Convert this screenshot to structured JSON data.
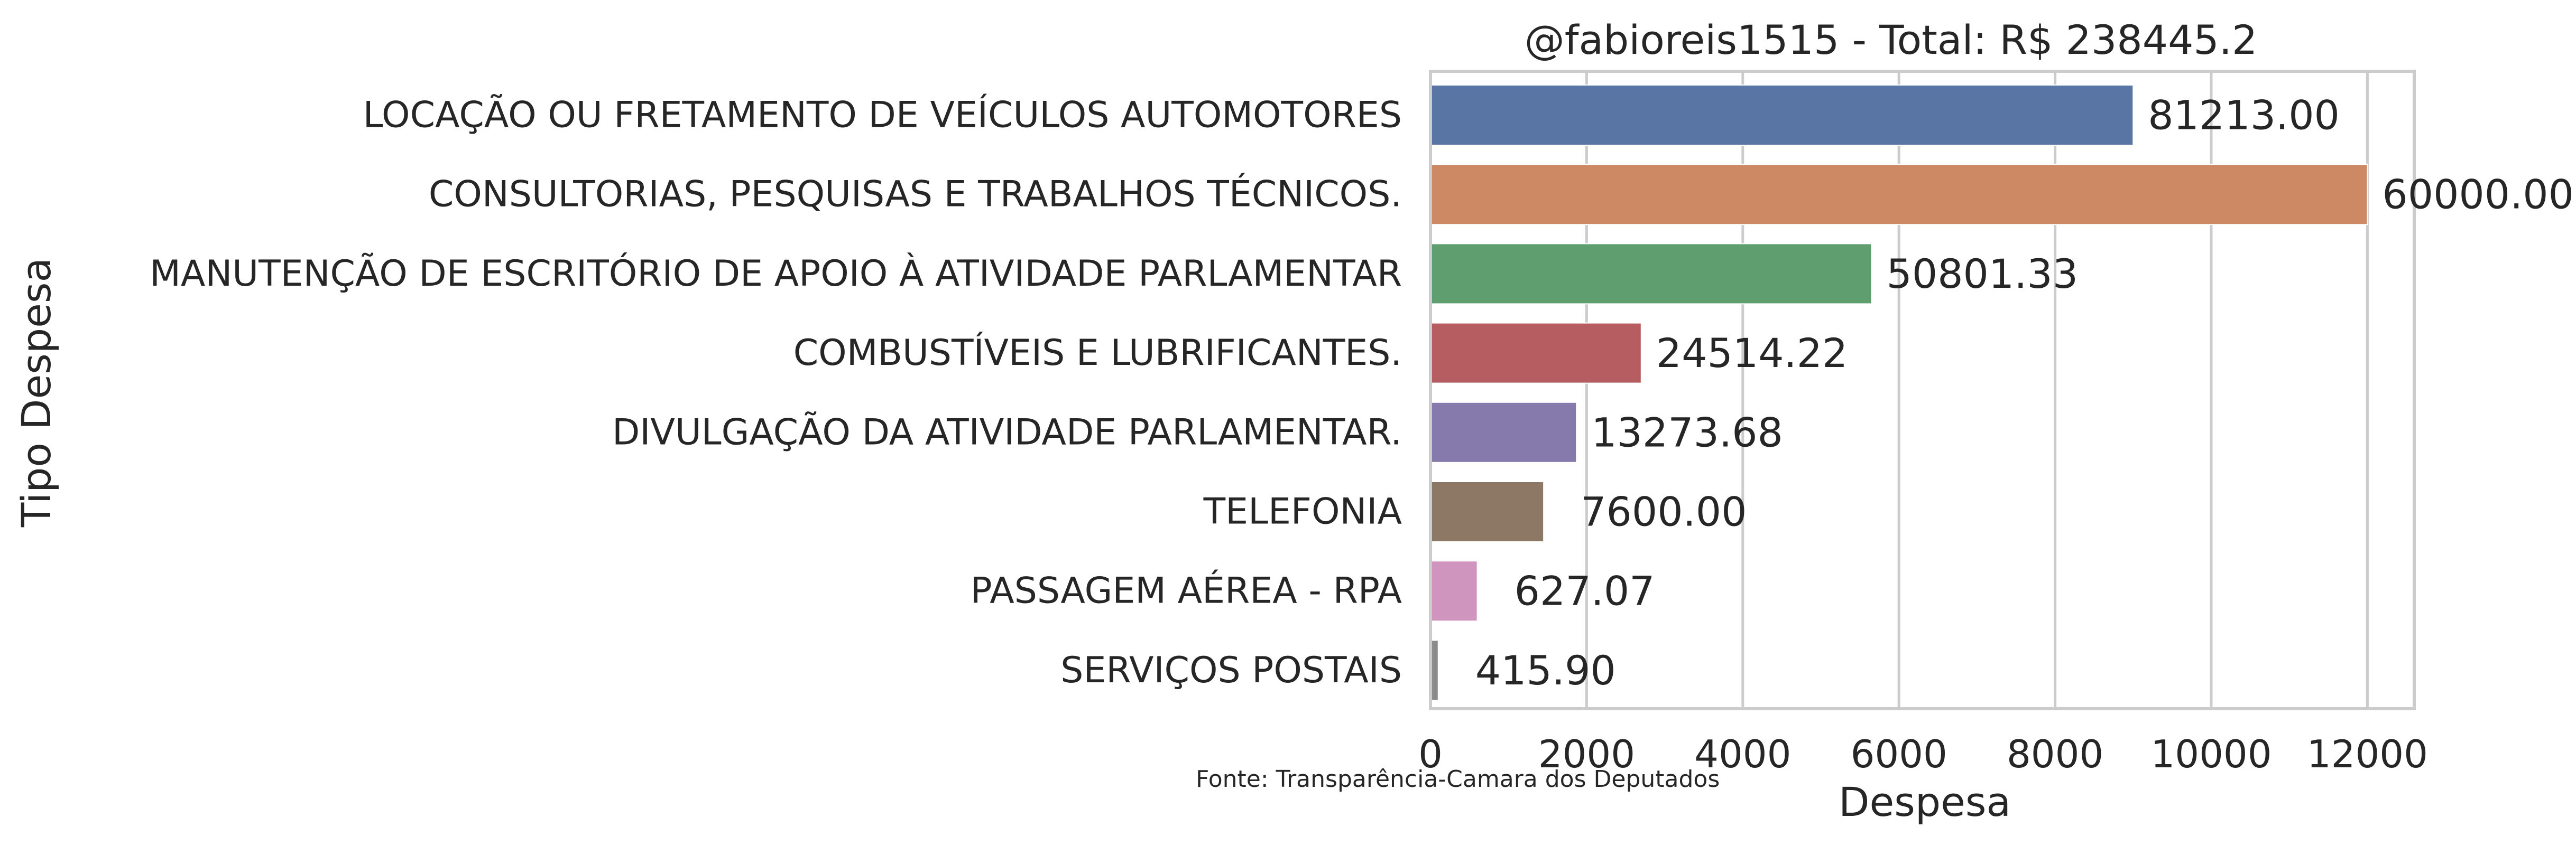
{
  "chart_data": {
    "type": "bar",
    "orientation": "horizontal",
    "title": "@fabioreis1515 - Total: R$ 238445.2",
    "xlabel": "Despesa",
    "ylabel": "Tipo Despesa",
    "xlim": [
      0,
      12600
    ],
    "xticks": [
      "0",
      "2000",
      "4000",
      "6000",
      "8000",
      "10000",
      "12000"
    ],
    "xtick_values": [
      0,
      2000,
      4000,
      6000,
      8000,
      10000,
      12000
    ],
    "grid": true,
    "categories": [
      "LOCAÇÃO OU FRETAMENTO DE VEÍCULOS AUTOMOTORES",
      "CONSULTORIAS, PESQUISAS E TRABALHOS TÉCNICOS.",
      "MANUTENÇÃO DE ESCRITÓRIO DE APOIO À ATIVIDADE PARLAMENTAR",
      "COMBUSTÍVEIS E LUBRIFICANTES.",
      "DIVULGAÇÃO DA ATIVIDADE PARLAMENTAR.",
      "TELEFONIA",
      "PASSAGEM AÉREA - RPA",
      "SERVIÇOS POSTAIS"
    ],
    "values": [
      9000,
      12000,
      5650,
      2700,
      1870,
      1450,
      600,
      100
    ],
    "data_labels": [
      "81213.00",
      "60000.00",
      "50801.33",
      "24514.22",
      "13273.68",
      "7600.00",
      "627.07",
      "415.90"
    ],
    "colors": [
      "#5875a4",
      "#cc8963",
      "#5f9e6e",
      "#b55d60",
      "#857aab",
      "#8d7866",
      "#d095bf",
      "#8c8c8c"
    ],
    "footnote": "Fonte: Transparência-Camara dos Deputados"
  }
}
